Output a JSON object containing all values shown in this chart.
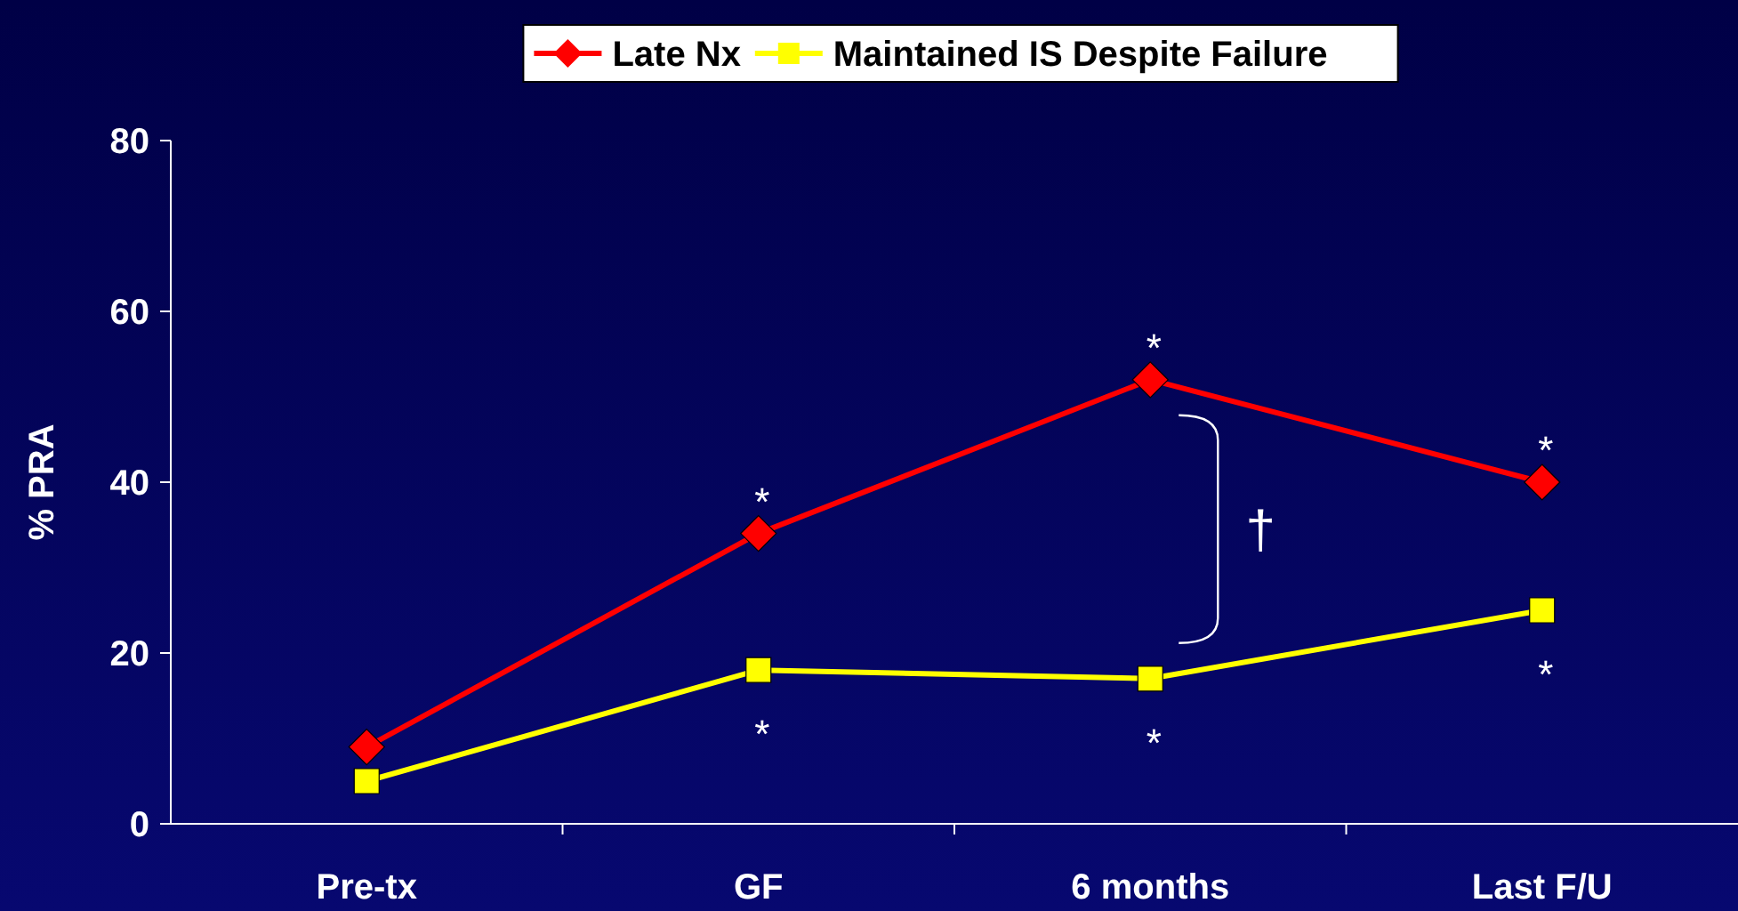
{
  "chart_data": {
    "type": "line",
    "ylabel": "% PRA",
    "categories": [
      "Pre-tx",
      "GF",
      "6 months",
      "Last F/U"
    ],
    "series": [
      {
        "name": "Late Nx",
        "color": "#ff0000",
        "marker": "diamond",
        "values": [
          9,
          34,
          52,
          40
        ]
      },
      {
        "name": "Maintained IS Despite Failure",
        "color": "#ffff00",
        "marker": "square",
        "values": [
          5,
          18,
          17,
          25
        ]
      }
    ],
    "ylim": [
      0,
      80
    ],
    "yticks": [
      0,
      20,
      40,
      60,
      80
    ],
    "grid": false,
    "legend": "top",
    "line_style": "solid",
    "annotations": [
      {
        "text": "*",
        "x": "GF",
        "y": 34
      },
      {
        "text": "*",
        "x": "6 months",
        "y": 52
      },
      {
        "text": "*",
        "x": "Last F/U",
        "y": 40
      },
      {
        "text": "*",
        "x": "GF",
        "y": 18
      },
      {
        "text": "*",
        "x": "6 months",
        "y": 17
      },
      {
        "text": "*",
        "x": "Last F/U",
        "y": 25
      },
      {
        "text": "†",
        "x": "6 months",
        "y": 52
      }
    ]
  }
}
